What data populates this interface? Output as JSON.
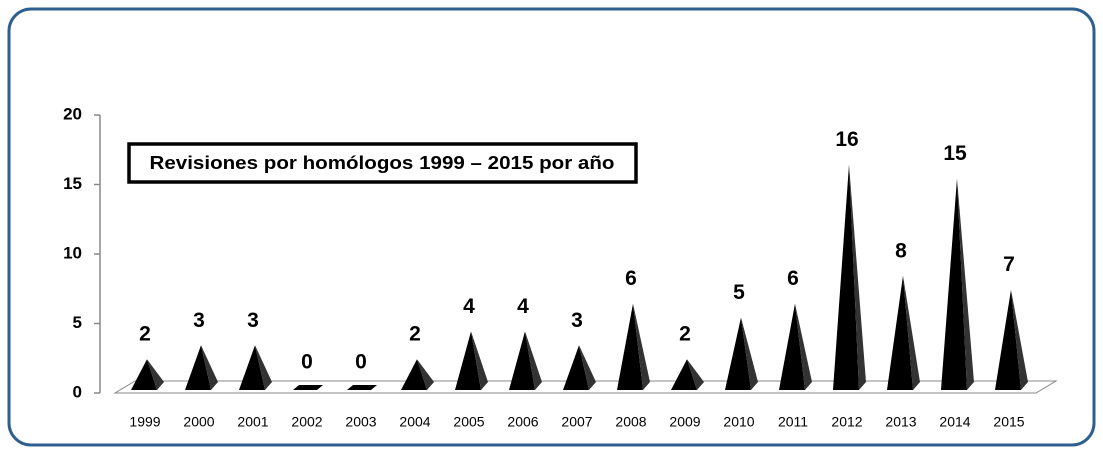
{
  "chart_data": {
    "type": "bar",
    "title": "Revisiones por homólogos 1999 – 2015 por año",
    "categories": [
      "1999",
      "2000",
      "2001",
      "2002",
      "2003",
      "2004",
      "2005",
      "2006",
      "2007",
      "2008",
      "2009",
      "2010",
      "2011",
      "2012",
      "2013",
      "2014",
      "2015"
    ],
    "values": [
      2,
      3,
      3,
      0,
      0,
      2,
      4,
      4,
      3,
      6,
      2,
      5,
      6,
      16,
      8,
      15,
      7
    ],
    "color": "#000000",
    "ylim": [
      0,
      20
    ],
    "yticks": [
      0,
      5,
      10,
      15,
      20
    ]
  }
}
